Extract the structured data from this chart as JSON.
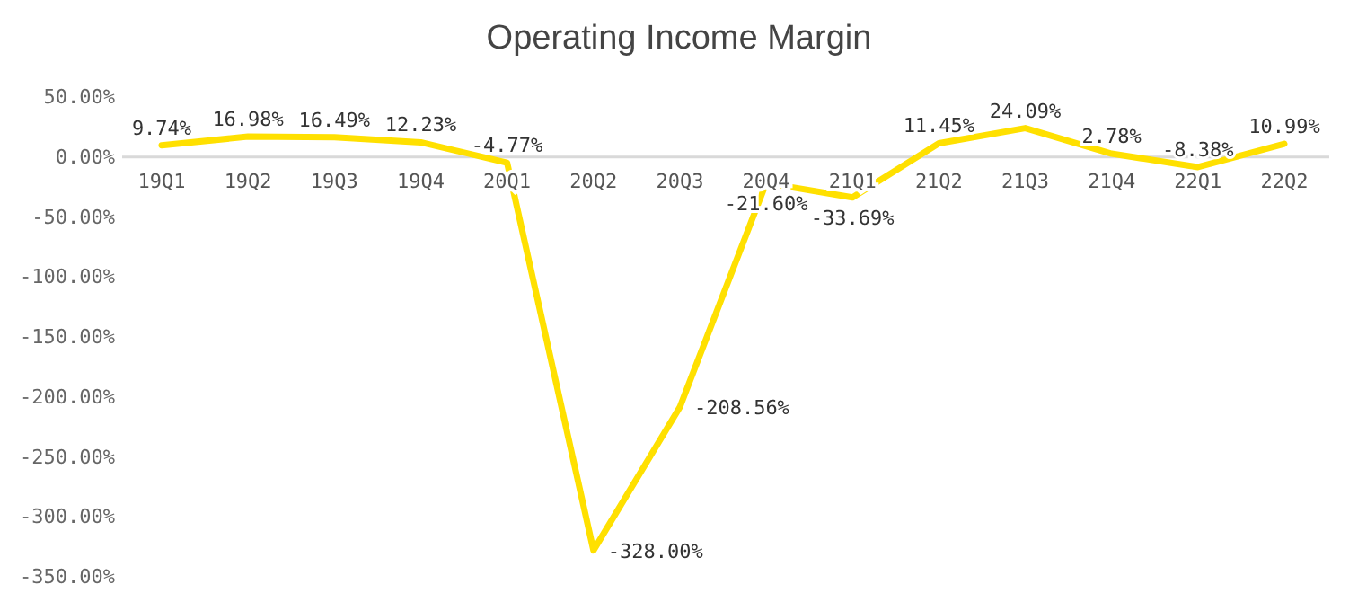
{
  "chart_data": {
    "type": "line",
    "title": "Operating Income Margin",
    "categories": [
      "19Q1",
      "19Q2",
      "19Q3",
      "19Q4",
      "20Q1",
      "20Q2",
      "20Q3",
      "20Q4",
      "21Q1",
      "21Q2",
      "21Q3",
      "21Q4",
      "22Q1",
      "22Q2"
    ],
    "series": [
      {
        "color": "#ffe000",
        "values": [
          9.74,
          16.98,
          16.49,
          12.23,
          -4.77,
          -328.0,
          -208.56,
          -21.6,
          -33.69,
          11.45,
          24.09,
          2.78,
          -8.38,
          10.99
        ],
        "value_labels": [
          "9.74%",
          "16.98%",
          "16.49%",
          "12.23%",
          "-4.77%",
          "-328.00%",
          "-208.56%",
          "-21.60%",
          "-33.69%",
          "11.45%",
          "24.09%",
          "2.78%",
          "-8.38%",
          "10.99%"
        ]
      }
    ],
    "ylim": [
      -350,
      50
    ],
    "yticks": [
      {
        "value": 50,
        "label": "50.00%"
      },
      {
        "value": 0,
        "label": "0.00%"
      },
      {
        "value": -50,
        "label": "-50.00%"
      },
      {
        "value": -100,
        "label": "-100.00%"
      },
      {
        "value": -150,
        "label": "-150.00%"
      },
      {
        "value": -200,
        "label": "-200.00%"
      },
      {
        "value": -250,
        "label": "-250.00%"
      },
      {
        "value": -300,
        "label": "-300.00%"
      },
      {
        "value": -350,
        "label": "-350.00%"
      }
    ],
    "grid": false,
    "marker": "none",
    "line_style": "solid"
  }
}
